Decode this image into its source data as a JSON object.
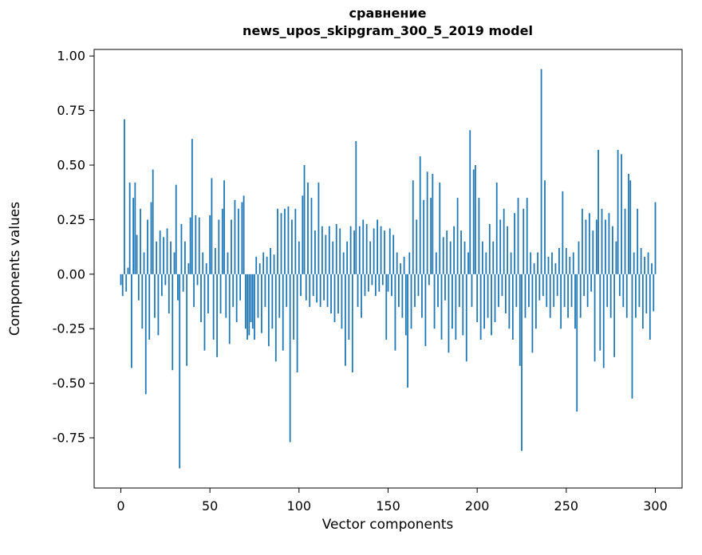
{
  "figure": {
    "title_line1": "сравнение",
    "title_line2": "news_upos_skipgram_300_5_2019 model",
    "xlabel": "Vector components",
    "ylabel": "Components values"
  },
  "chart_data": {
    "type": "bar",
    "title": "сравнение\nnews_upos_skipgram_300_5_2019 model",
    "xlabel": "Vector components",
    "ylabel": "Components values",
    "bar_color": "#1f77b4",
    "bar_width": 0.8,
    "xlim": [
      -15,
      315
    ],
    "ylim": [
      -0.98,
      1.03
    ],
    "xticks": [
      0,
      50,
      100,
      150,
      200,
      250,
      300
    ],
    "yticks": [
      1.0,
      0.75,
      0.5,
      0.25,
      0.0,
      -0.25,
      -0.5,
      -0.75
    ],
    "grid": false,
    "legend": "none",
    "x_start": 0,
    "values": [
      -0.05,
      -0.1,
      0.71,
      -0.08,
      0.03,
      0.42,
      -0.43,
      0.35,
      0.42,
      0.18,
      -0.12,
      0.3,
      -0.25,
      0.1,
      -0.55,
      0.25,
      -0.3,
      0.33,
      0.48,
      -0.2,
      0.15,
      -0.28,
      0.2,
      -0.1,
      0.17,
      -0.05,
      0.21,
      -0.18,
      0.15,
      -0.44,
      0.1,
      0.41,
      -0.12,
      -0.89,
      0.23,
      -0.08,
      0.15,
      -0.42,
      0.05,
      0.26,
      0.62,
      -0.15,
      0.27,
      -0.05,
      0.26,
      -0.22,
      0.1,
      -0.35,
      0.05,
      -0.18,
      0.27,
      0.44,
      -0.3,
      0.12,
      -0.38,
      0.25,
      -0.18,
      0.3,
      0.43,
      -0.2,
      0.1,
      -0.32,
      0.25,
      -0.15,
      0.34,
      -0.22,
      0.3,
      -0.12,
      0.33,
      0.36,
      -0.25,
      -0.3,
      -0.28,
      -0.22,
      -0.25,
      -0.3,
      0.08,
      -0.2,
      0.05,
      -0.27,
      0.1,
      -0.15,
      0.08,
      -0.33,
      0.12,
      -0.25,
      0.09,
      -0.4,
      0.3,
      -0.2,
      0.28,
      -0.35,
      0.3,
      -0.15,
      0.31,
      -0.77,
      0.25,
      -0.3,
      0.3,
      -0.45,
      0.15,
      -0.1,
      0.36,
      0.5,
      -0.12,
      0.42,
      -0.15,
      0.35,
      -0.1,
      0.2,
      -0.13,
      0.42,
      -0.15,
      0.22,
      -0.12,
      0.18,
      -0.15,
      0.22,
      -0.18,
      0.15,
      -0.22,
      0.23,
      -0.18,
      0.21,
      -0.25,
      0.1,
      -0.42,
      0.15,
      -0.3,
      0.22,
      -0.45,
      0.2,
      0.61,
      -0.15,
      0.22,
      -0.2,
      0.25,
      -0.1,
      0.23,
      -0.08,
      0.15,
      -0.05,
      0.21,
      -0.1,
      0.25,
      -0.08,
      0.22,
      -0.05,
      0.2,
      -0.3,
      -0.08,
      0.21,
      -0.1,
      0.18,
      -0.35,
      0.1,
      -0.15,
      0.05,
      -0.2,
      0.08,
      -0.28,
      -0.52,
      0.1,
      -0.25,
      0.43,
      -0.15,
      0.25,
      -0.1,
      0.54,
      -0.2,
      0.34,
      -0.33,
      0.47,
      -0.05,
      0.35,
      0.46,
      -0.25,
      0.1,
      -0.15,
      0.42,
      -0.3,
      0.17,
      -0.12,
      0.2,
      -0.36,
      0.15,
      -0.25,
      0.22,
      -0.3,
      0.35,
      -0.15,
      0.2,
      -0.28,
      0.15,
      -0.4,
      0.1,
      0.66,
      -0.15,
      0.48,
      0.5,
      -0.22,
      0.35,
      -0.3,
      0.15,
      -0.25,
      0.1,
      -0.2,
      0.23,
      -0.28,
      0.15,
      -0.22,
      0.42,
      -0.15,
      0.25,
      -0.1,
      0.3,
      -0.18,
      0.22,
      -0.25,
      0.1,
      -0.3,
      0.28,
      -0.15,
      0.35,
      -0.42,
      -0.81,
      0.3,
      -0.2,
      0.35,
      -0.15,
      0.1,
      -0.36,
      0.05,
      -0.25,
      0.1,
      -0.12,
      0.94,
      -0.1,
      0.43,
      -0.15,
      0.08,
      -0.2,
      0.1,
      -0.15,
      0.05,
      -0.1,
      0.12,
      -0.25,
      0.38,
      -0.15,
      0.12,
      -0.2,
      0.08,
      -0.15,
      0.1,
      -0.25,
      -0.63,
      0.15,
      -0.2,
      0.3,
      -0.1,
      0.25,
      -0.15,
      0.28,
      -0.08,
      0.2,
      -0.4,
      0.25,
      0.57,
      -0.35,
      0.3,
      -0.43,
      0.25,
      -0.15,
      0.28,
      -0.2,
      0.22,
      -0.38,
      0.15,
      0.57,
      -0.1,
      0.55,
      -0.15,
      0.3,
      -0.2,
      0.46,
      0.43,
      -0.57,
      0.1,
      -0.2,
      0.3,
      -0.15,
      0.12,
      -0.25,
      0.08,
      -0.18,
      0.1,
      -0.3,
      0.05,
      -0.17,
      0.33
    ]
  }
}
